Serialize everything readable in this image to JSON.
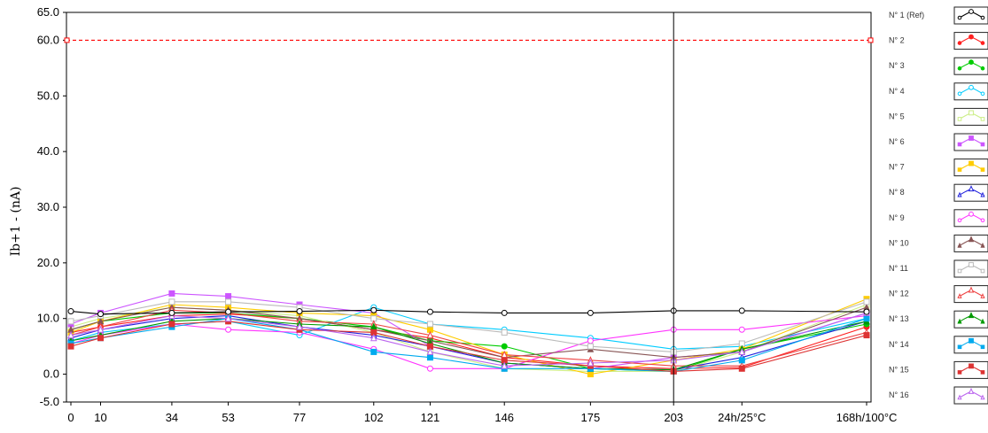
{
  "chart_data": {
    "type": "line",
    "ylabel": "Ib+1 - (nA)",
    "xlabel": "",
    "x_categories": [
      "0",
      "10",
      "34",
      "53",
      "77",
      "102",
      "121",
      "146",
      "175",
      "203",
      "24h/25°C",
      "168h/100°C"
    ],
    "x_positions": [
      0,
      10,
      34,
      53,
      77,
      102,
      121,
      146,
      175,
      203,
      226,
      268
    ],
    "y_ticks": [
      "65.0",
      "60.0",
      "50.0",
      "40.0",
      "30.0",
      "20.0",
      "10.0",
      "0.0",
      "-5.0"
    ],
    "ylim": [
      -5,
      65
    ],
    "xlim": [
      0,
      268
    ],
    "grid": false,
    "reference_line": {
      "value": 60,
      "color": "#ff0000",
      "style": "dashed"
    },
    "cursor_x": 203,
    "legend_position": "right",
    "series": [
      {
        "name": "N° 1 (Ref)",
        "color": "#000000",
        "marker": "open-circle",
        "values": [
          11.3,
          10.8,
          11.0,
          11.2,
          11.3,
          11.5,
          11.2,
          11.0,
          11.0,
          11.4,
          11.4,
          11.2
        ]
      },
      {
        "name": "N° 2",
        "color": "#ff2020",
        "marker": "filled-circle",
        "values": [
          7.5,
          8.5,
          10.5,
          10.8,
          10.0,
          8.0,
          6.5,
          3.0,
          1.5,
          1.0,
          1.2,
          8.5
        ]
      },
      {
        "name": "N° 3",
        "color": "#00cc00",
        "marker": "filled-circle",
        "values": [
          8.0,
          9.5,
          11.0,
          11.0,
          10.0,
          8.5,
          6.0,
          5.0,
          1.0,
          0.5,
          4.5,
          9.0
        ]
      },
      {
        "name": "N° 4",
        "color": "#00ccff",
        "marker": "open-circle",
        "values": [
          6.0,
          7.5,
          9.0,
          9.5,
          7.0,
          12.0,
          9.0,
          8.0,
          6.5,
          4.5,
          5.0,
          10.0
        ]
      },
      {
        "name": "N° 5",
        "color": "#ccee88",
        "marker": "open-square",
        "values": [
          8.5,
          10.0,
          12.0,
          11.5,
          10.5,
          7.5,
          4.0,
          1.0,
          0.5,
          0.5,
          4.0,
          12.5
        ]
      },
      {
        "name": "N° 6",
        "color": "#cc55ff",
        "marker": "filled-square",
        "values": [
          9.0,
          11.0,
          14.5,
          14.0,
          12.5,
          11.0,
          5.0,
          2.0,
          1.0,
          3.0,
          4.0,
          11.0
        ]
      },
      {
        "name": "N° 7",
        "color": "#ffcc00",
        "marker": "filled-square",
        "values": [
          7.5,
          9.5,
          12.5,
          12.0,
          11.0,
          10.5,
          8.0,
          3.5,
          0.0,
          2.5,
          4.5,
          13.5
        ]
      },
      {
        "name": "N° 8",
        "color": "#2222dd",
        "marker": "open-triangle",
        "values": [
          6.5,
          8.0,
          10.0,
          10.5,
          8.5,
          7.0,
          5.0,
          2.0,
          1.0,
          0.8,
          3.0,
          9.5
        ]
      },
      {
        "name": "N° 9",
        "color": "#ff33ff",
        "marker": "open-circle",
        "values": [
          5.5,
          7.0,
          9.0,
          8.0,
          7.5,
          4.5,
          1.0,
          1.0,
          6.0,
          8.0,
          8.0,
          10.5
        ]
      },
      {
        "name": "N° 10",
        "color": "#885555",
        "marker": "filled-triangle",
        "values": [
          8.0,
          9.5,
          12.0,
          11.5,
          10.0,
          8.0,
          6.0,
          3.0,
          4.5,
          3.0,
          4.0,
          12.0
        ]
      },
      {
        "name": "N° 11",
        "color": "#bbbbbb",
        "marker": "open-square",
        "values": [
          9.5,
          10.5,
          13.0,
          13.0,
          12.0,
          10.0,
          9.0,
          7.5,
          5.0,
          4.0,
          5.5,
          13.0
        ]
      },
      {
        "name": "N° 12",
        "color": "#ee4444",
        "marker": "open-triangle",
        "values": [
          7.0,
          8.5,
          11.5,
          11.0,
          9.5,
          9.0,
          7.0,
          3.5,
          2.5,
          1.5,
          1.5,
          7.5
        ]
      },
      {
        "name": "N° 13",
        "color": "#009900",
        "marker": "filled-triangle",
        "values": [
          6.0,
          7.0,
          9.5,
          10.0,
          9.0,
          8.5,
          5.5,
          2.0,
          1.0,
          0.8,
          4.5,
          9.5
        ]
      },
      {
        "name": "N° 14",
        "color": "#00aaee",
        "marker": "filled-square",
        "values": [
          5.5,
          6.5,
          8.5,
          10.0,
          8.0,
          4.0,
          3.0,
          1.0,
          1.0,
          0.5,
          2.5,
          10.0
        ]
      },
      {
        "name": "N° 15",
        "color": "#dd3333",
        "marker": "filled-square",
        "values": [
          5.0,
          6.5,
          9.0,
          9.5,
          8.0,
          7.5,
          5.0,
          2.5,
          1.5,
          0.5,
          1.0,
          7.0
        ]
      },
      {
        "name": "N° 16",
        "color": "#bb66ee",
        "marker": "open-triangle",
        "values": [
          7.0,
          8.0,
          10.5,
          10.0,
          8.5,
          6.5,
          4.0,
          1.5,
          2.0,
          2.5,
          4.0,
          11.0
        ]
      }
    ]
  }
}
